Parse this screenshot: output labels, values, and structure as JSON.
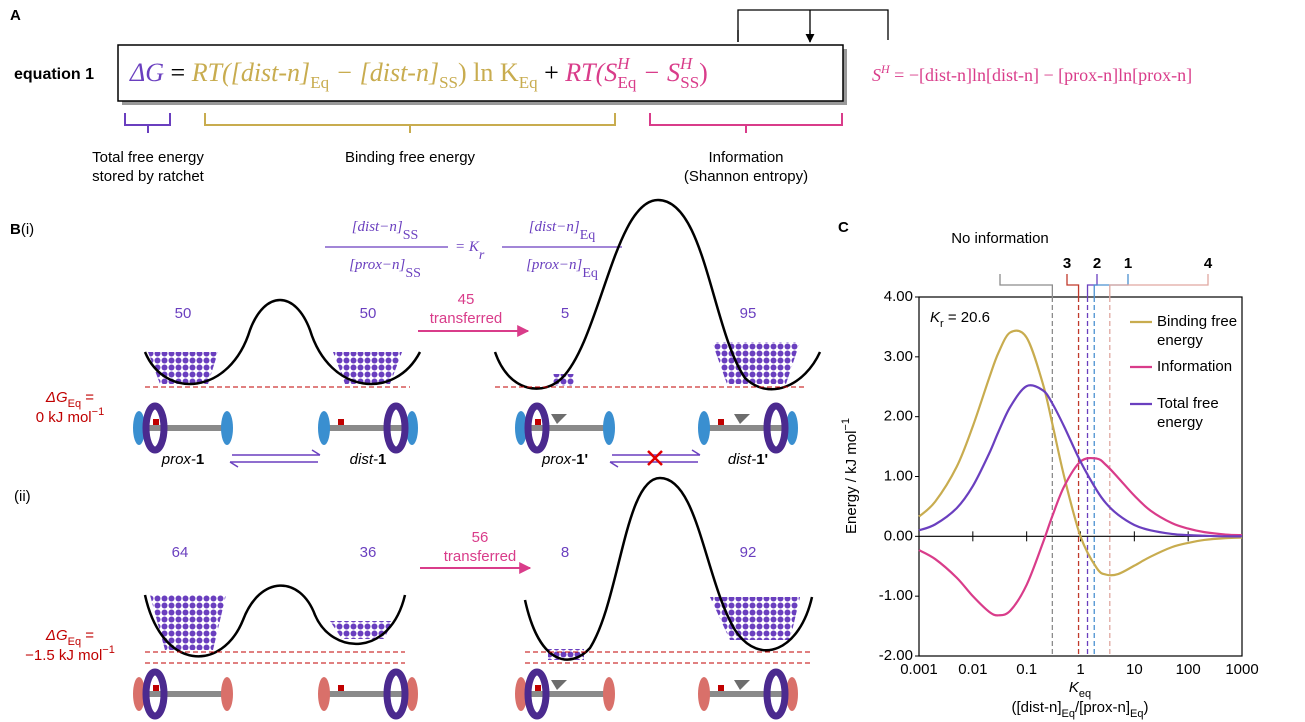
{
  "panel_a": {
    "label": "A",
    "equation_label": "equation 1",
    "equation": [
      "ΔG",
      " = ",
      "RT([dist-n]",
      "Eq",
      " − [dist-n]",
      "SS",
      ") ln K",
      "Eq",
      " + ",
      "RT(S",
      "H",
      "Eq",
      " − S",
      "H",
      "SS",
      ")"
    ],
    "shannon": [
      "S",
      "H",
      " = −[dist-n]ln[dist-n] − [prox-n]ln[prox-n]"
    ],
    "brace_labels": [
      [
        "Total free energy",
        "stored by ratchet"
      ],
      [
        "Binding free energy"
      ],
      [
        "Information",
        "(Shannon entropy)"
      ]
    ]
  },
  "panel_b": {
    "label": "B",
    "sub_labels": [
      "(i)",
      "(ii)"
    ],
    "ratio_equation": {
      "num_left": "[dist−n]",
      "num_left_sub": "SS",
      "den_left": "[prox−n]",
      "den_left_sub": "SS",
      "middle": "= K",
      "middle_sub": "r",
      "num_right": "[dist−n]",
      "num_right_sub": "Eq",
      "den_right": "[prox−n]",
      "den_right_sub": "Eq"
    },
    "rows": [
      {
        "populations": [
          50,
          50,
          5,
          95
        ],
        "transferred": 45,
        "transferred_text": "transferred",
        "dg_label": "ΔG",
        "dg_sub": "Eq",
        "dg_eq": " =",
        "dg_value": "0 kJ mol",
        "dg_unit_sup": "−1",
        "species": [
          [
            "prox-",
            "1"
          ],
          [
            "dist-",
            "1"
          ],
          [
            "prox-",
            "1'"
          ],
          [
            "dist-",
            "1'"
          ]
        ]
      },
      {
        "populations": [
          64,
          36,
          8,
          92
        ],
        "transferred": 56,
        "transferred_text": "transferred",
        "dg_label": "ΔG",
        "dg_sub": "Eq",
        "dg_eq": " =",
        "dg_value": "−1.5 kJ mol",
        "dg_unit_sup": "−1"
      }
    ]
  },
  "panel_c_label": "C",
  "chart_data": {
    "type": "line",
    "log_x": true,
    "annotation": [
      "K",
      "r",
      " = 20.6"
    ],
    "xlabel": [
      "K",
      "eq"
    ],
    "xlabel_note": [
      "([dist-n]",
      "Eq",
      "/[prox-n]",
      "Eq",
      ")"
    ],
    "ylabel": [
      "Energy / kJ mol",
      "−1"
    ],
    "x": [
      0.001,
      0.002,
      0.005,
      0.01,
      0.02,
      0.03,
      0.05,
      0.1,
      0.2,
      0.3,
      0.5,
      1,
      2,
      3,
      5,
      10,
      20,
      50,
      100,
      200,
      500,
      1000
    ],
    "series": [
      {
        "name": "Binding free energy",
        "color": "#c8ac4f",
        "values": [
          0.33,
          0.58,
          1.16,
          1.84,
          2.64,
          3.07,
          3.41,
          3.32,
          2.55,
          1.88,
          0.99,
          0,
          -0.53,
          -0.64,
          -0.63,
          -0.49,
          -0.34,
          -0.18,
          -0.11,
          -0.06,
          -0.03,
          -0.02
        ]
      },
      {
        "name": "Information",
        "color": "#d93c8a",
        "values": [
          -0.23,
          -0.38,
          -0.69,
          -1.0,
          -1.26,
          -1.32,
          -1.24,
          -0.81,
          -0.11,
          0.34,
          0.84,
          1.25,
          1.3,
          1.19,
          0.98,
          0.68,
          0.43,
          0.22,
          0.13,
          0.07,
          0.03,
          0.02
        ]
      },
      {
        "name": "Total free energy",
        "color": "#6a3fbf",
        "values": [
          0.1,
          0.2,
          0.47,
          0.84,
          1.38,
          1.75,
          2.17,
          2.51,
          2.44,
          2.22,
          1.83,
          1.25,
          0.77,
          0.55,
          0.36,
          0.19,
          0.1,
          0.04,
          0.02,
          0.01,
          0.0,
          0.0
        ]
      }
    ],
    "markers": [
      {
        "label": "No information",
        "value": 0.3,
        "color": "#8c8c8c"
      },
      {
        "label": "3",
        "value": 0.92,
        "color": "#c0392b"
      },
      {
        "label": "2",
        "value": 1.35,
        "color": "#6a3fbf"
      },
      {
        "label": "1",
        "value": 1.8,
        "color": "#4a90d0"
      },
      {
        "label": "4",
        "value": 3.5,
        "color": "#e0a8a0"
      }
    ],
    "xlim": [
      0.001,
      1000
    ],
    "xticks": [
      0.001,
      0.01,
      0.1,
      1,
      10,
      100,
      1000
    ],
    "ylim": [
      -2,
      4
    ],
    "yticks": [
      {
        "value": -2,
        "label": "-2.00"
      },
      {
        "value": -1,
        "label": "-1.00"
      },
      {
        "value": 0,
        "label": "0.00"
      },
      {
        "value": 1,
        "label": "1.00"
      },
      {
        "value": 2,
        "label": "2.00"
      },
      {
        "value": 3,
        "label": "3.00"
      },
      {
        "value": 4,
        "label": "4.00"
      }
    ],
    "grid": false
  }
}
